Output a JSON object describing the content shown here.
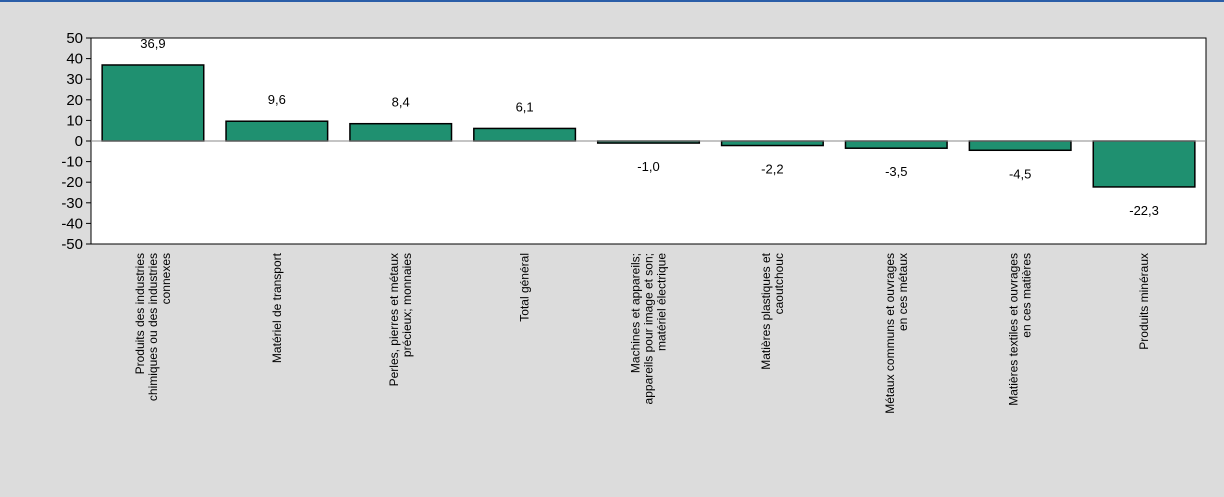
{
  "chart_data": {
    "type": "bar",
    "categories": [
      [
        "Produits des industries",
        "chimiques ou des industries",
        "connexes"
      ],
      [
        "Matériel de transport"
      ],
      [
        "Perles, pierres et métaux",
        "précieux; monnaies"
      ],
      [
        "Total général"
      ],
      [
        "Machines et appareils;",
        "appareils pour image et son;",
        "matériel électrique"
      ],
      [
        "Matières plastiques et",
        "caoutchouc"
      ],
      [
        "Métaux communs et ouvrages",
        "en ces métaux"
      ],
      [
        "Matières textiles et ouvrages",
        "en ces matières"
      ],
      [
        "Produits minéraux"
      ]
    ],
    "values": [
      36.9,
      9.6,
      8.4,
      6.1,
      -1.0,
      -2.2,
      -3.5,
      -4.5,
      -22.3
    ],
    "data_labels": [
      "36,9",
      "9,6",
      "8,4",
      "6,1",
      "-1,0",
      "-2,2",
      "-3,5",
      "-4,5",
      "-22,3"
    ],
    "yticks": [
      50,
      40,
      30,
      20,
      10,
      0,
      -10,
      -20,
      -30,
      -40,
      -50
    ],
    "ylim": [
      -50,
      50
    ],
    "grid": false,
    "legend": "none",
    "bar_color": "#1f9070",
    "bar_border_color": "#000000",
    "zero_line_color": "#888888"
  }
}
